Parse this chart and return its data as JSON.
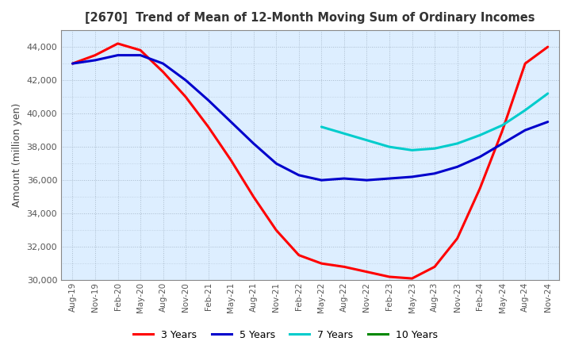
{
  "title": "[2670]  Trend of Mean of 12-Month Moving Sum of Ordinary Incomes",
  "ylabel": "Amount (million yen)",
  "ylim": [
    30000,
    45000
  ],
  "yticks": [
    30000,
    32000,
    34000,
    36000,
    38000,
    40000,
    42000,
    44000
  ],
  "background_color": "#ddeeff",
  "plot_bg_color": "#ddeeff",
  "grid_color": "#aabbcc",
  "title_color": "#333333",
  "legend_entries": [
    "3 Years",
    "5 Years",
    "7 Years",
    "10 Years"
  ],
  "line_colors": [
    "#ff0000",
    "#0000cc",
    "#00cccc",
    "#008800"
  ],
  "x_labels": [
    "Aug-19",
    "Nov-19",
    "Feb-20",
    "May-20",
    "Aug-20",
    "Nov-20",
    "Feb-21",
    "May-21",
    "Aug-21",
    "Nov-21",
    "Feb-22",
    "May-22",
    "Aug-22",
    "Nov-22",
    "Feb-23",
    "May-23",
    "Aug-23",
    "Nov-23",
    "Feb-24",
    "May-24",
    "Aug-24",
    "Nov-24"
  ],
  "series_3y": [
    43000,
    43500,
    44200,
    43800,
    42500,
    41000,
    39200,
    37200,
    35000,
    33000,
    31500,
    31000,
    30800,
    30500,
    30200,
    30100,
    30800,
    32500,
    35500,
    39000,
    43000,
    44000
  ],
  "series_5y": [
    43000,
    43200,
    43500,
    43500,
    43000,
    42000,
    40800,
    39500,
    38200,
    37000,
    36300,
    36000,
    36100,
    36000,
    36100,
    36200,
    36400,
    36800,
    37400,
    38200,
    39000,
    39500
  ],
  "series_7y": [
    null,
    null,
    null,
    null,
    null,
    null,
    null,
    null,
    null,
    null,
    null,
    39200,
    38800,
    38400,
    38000,
    37800,
    37900,
    38200,
    38700,
    39300,
    40200,
    41200
  ],
  "series_10y": [
    null,
    null,
    null,
    null,
    null,
    null,
    null,
    null,
    null,
    null,
    null,
    null,
    null,
    null,
    null,
    null,
    null,
    null,
    null,
    null,
    null,
    null
  ]
}
